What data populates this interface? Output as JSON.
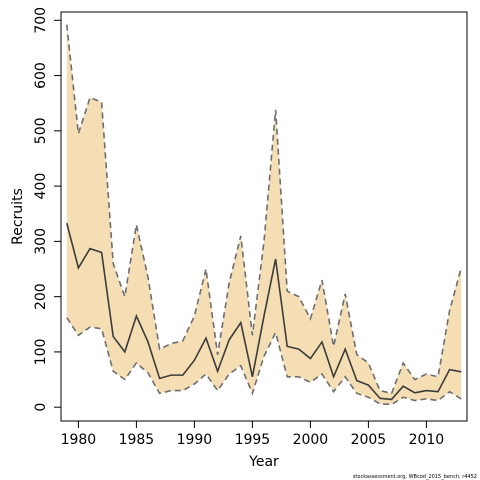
{
  "chart_data": {
    "type": "area",
    "xlabel": "Year",
    "ylabel": "Recruits",
    "xlim": [
      1978.5,
      2013.5
    ],
    "ylim": [
      -25,
      715
    ],
    "xticks": [
      1980,
      1985,
      1990,
      1995,
      2000,
      2005,
      2010
    ],
    "yticks": [
      0,
      100,
      200,
      300,
      400,
      500,
      600,
      700
    ],
    "grid": false,
    "legend": "none",
    "colors": {
      "band_fill": "#f5deb3",
      "band_edge": "#6e6e6e",
      "median_line": "#3c3c3c"
    },
    "x": [
      1979,
      1980,
      1981,
      1982,
      1983,
      1984,
      1985,
      1986,
      1987,
      1988,
      1989,
      1990,
      1991,
      1992,
      1993,
      1994,
      1995,
      1996,
      1997,
      1998,
      1999,
      2000,
      2001,
      2002,
      2003,
      2004,
      2005,
      2006,
      2007,
      2008,
      2009,
      2010,
      2011,
      2012,
      2013
    ],
    "series": [
      {
        "role": "upper",
        "values": [
          692,
          495,
          560,
          552,
          260,
          200,
          330,
          235,
          105,
          115,
          120,
          165,
          250,
          95,
          225,
          310,
          130,
          300,
          538,
          210,
          200,
          160,
          230,
          110,
          205,
          95,
          80,
          30,
          25,
          80,
          50,
          60,
          55,
          175,
          252
        ]
      },
      {
        "role": "central",
        "values": [
          333,
          252,
          287,
          280,
          128,
          100,
          165,
          118,
          52,
          58,
          58,
          85,
          125,
          65,
          122,
          153,
          55,
          165,
          268,
          110,
          105,
          88,
          118,
          55,
          105,
          48,
          40,
          16,
          14,
          38,
          26,
          30,
          28,
          68,
          64
        ]
      },
      {
        "role": "lower",
        "values": [
          162,
          130,
          145,
          142,
          65,
          50,
          80,
          62,
          25,
          30,
          30,
          42,
          60,
          30,
          60,
          75,
          25,
          92,
          135,
          55,
          55,
          45,
          60,
          28,
          55,
          25,
          18,
          6,
          5,
          18,
          12,
          15,
          12,
          28,
          15
        ]
      }
    ],
    "footnote": "stockassessment.org, WBcod_2015_bench, r4452"
  }
}
